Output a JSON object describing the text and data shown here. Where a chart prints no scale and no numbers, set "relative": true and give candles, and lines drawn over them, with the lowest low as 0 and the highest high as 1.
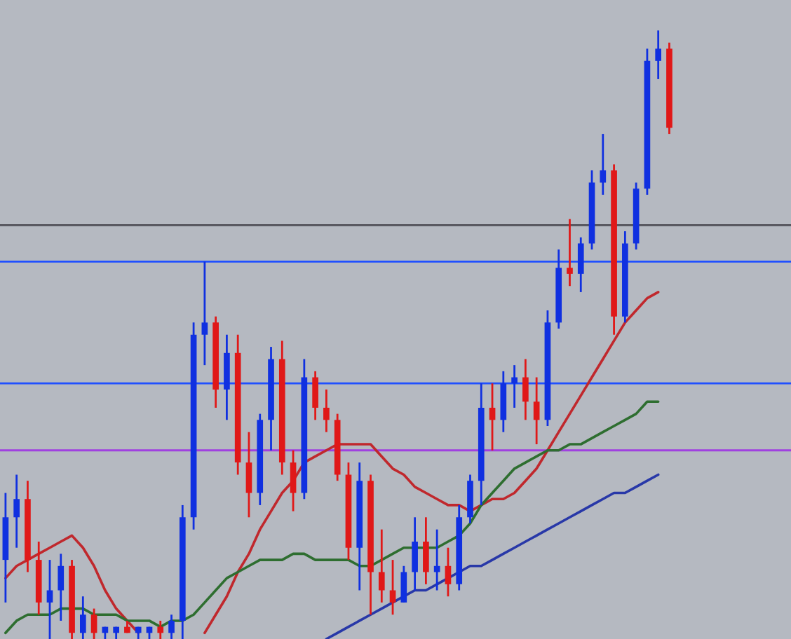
{
  "chart_data": {
    "type": "candlestick",
    "relative": true,
    "categories": [
      null,
      null,
      null,
      null,
      null,
      null,
      null,
      null,
      null,
      null,
      null,
      null,
      null,
      null,
      null,
      null,
      null,
      null,
      null,
      null,
      null,
      null,
      null,
      null,
      null,
      null,
      null,
      null,
      null,
      null,
      null,
      null,
      null,
      null,
      null,
      null,
      null,
      null,
      null,
      null,
      null,
      null,
      null,
      null,
      null,
      null,
      null,
      null,
      null,
      null,
      null,
      null,
      null,
      null,
      null,
      null,
      null,
      null,
      null,
      null,
      null
    ],
    "ohlc": [
      [
        0.13,
        0.24,
        0.06,
        0.2
      ],
      [
        0.2,
        0.27,
        0.15,
        0.23
      ],
      [
        0.23,
        0.26,
        0.11,
        0.13
      ],
      [
        0.13,
        0.16,
        0.04,
        0.06
      ],
      [
        0.06,
        0.13,
        0,
        0.08
      ],
      [
        0.08,
        0.14,
        0.03,
        0.12
      ],
      [
        0.12,
        0.13,
        0,
        0.01
      ],
      [
        0.01,
        0.07,
        0,
        0.04
      ],
      [
        0.04,
        0.05,
        0,
        0.01
      ],
      [
        0.01,
        0.02,
        0,
        0.02
      ],
      [
        0.01,
        0.02,
        0,
        0.02
      ],
      [
        0.02,
        0.03,
        0.01,
        0.01
      ],
      [
        0.01,
        0.02,
        0,
        0.02
      ],
      [
        0.01,
        0.02,
        0,
        0.02
      ],
      [
        0.02,
        0.03,
        0,
        0.01
      ],
      [
        0.01,
        0.04,
        0,
        0.03
      ],
      [
        0.03,
        0.22,
        0,
        0.2
      ],
      [
        0.2,
        0.52,
        0.18,
        0.5
      ],
      [
        0.5,
        0.62,
        0.45,
        0.52
      ],
      [
        0.52,
        0.53,
        0.38,
        0.41
      ],
      [
        0.41,
        0.5,
        0.36,
        0.47
      ],
      [
        0.47,
        0.5,
        0.27,
        0.29
      ],
      [
        0.29,
        0.34,
        0.2,
        0.24
      ],
      [
        0.24,
        0.37,
        0.22,
        0.36
      ],
      [
        0.36,
        0.48,
        0.31,
        0.46
      ],
      [
        0.46,
        0.49,
        0.27,
        0.29
      ],
      [
        0.29,
        0.31,
        0.21,
        0.24
      ],
      [
        0.24,
        0.46,
        0.23,
        0.43
      ],
      [
        0.43,
        0.44,
        0.36,
        0.38
      ],
      [
        0.38,
        0.41,
        0.34,
        0.36
      ],
      [
        0.36,
        0.37,
        0.26,
        0.27
      ],
      [
        0.27,
        0.29,
        0.13,
        0.15
      ],
      [
        0.15,
        0.29,
        0.08,
        0.26
      ],
      [
        0.26,
        0.27,
        0.04,
        0.11
      ],
      [
        0.11,
        0.18,
        0.06,
        0.08
      ],
      [
        0.08,
        0.13,
        0.04,
        0.06
      ],
      [
        0.06,
        0.12,
        0.06,
        0.11
      ],
      [
        0.11,
        0.2,
        0.08,
        0.16
      ],
      [
        0.16,
        0.2,
        0.09,
        0.11
      ],
      [
        0.11,
        0.18,
        0.08,
        0.12
      ],
      [
        0.12,
        0.15,
        0.07,
        0.09
      ],
      [
        0.09,
        0.22,
        0.08,
        0.2
      ],
      [
        0.2,
        0.27,
        0.19,
        0.26
      ],
      [
        0.26,
        0.42,
        0.22,
        0.38
      ],
      [
        0.38,
        0.42,
        0.31,
        0.36
      ],
      [
        0.36,
        0.44,
        0.34,
        0.42
      ],
      [
        0.42,
        0.45,
        0.38,
        0.43
      ],
      [
        0.43,
        0.46,
        0.36,
        0.39
      ],
      [
        0.39,
        0.43,
        0.32,
        0.36
      ],
      [
        0.36,
        0.54,
        0.35,
        0.52
      ],
      [
        0.52,
        0.64,
        0.51,
        0.61
      ],
      [
        0.61,
        0.69,
        0.58,
        0.6
      ],
      [
        0.6,
        0.66,
        0.57,
        0.65
      ],
      [
        0.65,
        0.77,
        0.64,
        0.75
      ],
      [
        0.75,
        0.83,
        0.73,
        0.77
      ],
      [
        0.77,
        0.78,
        0.5,
        0.53
      ],
      [
        0.53,
        0.67,
        0.52,
        0.65
      ],
      [
        0.65,
        0.75,
        0.64,
        0.74
      ],
      [
        0.74,
        0.97,
        0.73,
        0.95
      ],
      [
        0.95,
        1.0,
        0.92,
        0.97
      ],
      [
        0.97,
        0.98,
        0.83,
        0.84
      ]
    ],
    "colors": [
      "#1030e0",
      "#1030e0",
      "#e01818",
      "#e01818",
      "#1030e0",
      "#1030e0",
      "#e01818",
      "#1030e0",
      "#e01818",
      "#1030e0",
      "#1030e0",
      "#e01818",
      "#1030e0",
      "#1030e0",
      "#e01818",
      "#1030e0",
      "#1030e0",
      "#1030e0",
      "#1030e0",
      "#e01818",
      "#1030e0",
      "#e01818",
      "#e01818",
      "#1030e0",
      "#1030e0",
      "#e01818",
      "#e01818",
      "#1030e0",
      "#e01818",
      "#e01818",
      "#e01818",
      "#e01818",
      "#1030e0",
      "#e01818",
      "#e01818",
      "#e01818",
      "#1030e0",
      "#1030e0",
      "#e01818",
      "#1030e0",
      "#e01818",
      "#1030e0",
      "#1030e0",
      "#1030e0",
      "#e01818",
      "#1030e0",
      "#1030e0",
      "#e01818",
      "#e01818",
      "#1030e0",
      "#1030e0",
      "#e01818",
      "#1030e0",
      "#1030e0",
      "#1030e0",
      "#e01818",
      "#1030e0",
      "#1030e0",
      "#1030e0",
      "#1030e0",
      "#e01818"
    ],
    "series": [
      {
        "type": "line",
        "color": "#c0282d",
        "values": [
          0.1,
          0.12,
          0.13,
          0.14,
          0.15,
          0.16,
          0.17,
          0.15,
          0.12,
          0.08,
          0.05,
          0.03,
          0.01,
          null,
          null,
          null,
          null,
          null,
          0.01,
          0.04,
          0.07,
          0.11,
          0.14,
          0.18,
          0.21,
          0.24,
          0.26,
          0.29,
          0.3,
          0.31,
          0.32,
          0.32,
          0.32,
          0.32,
          0.3,
          0.28,
          0.27,
          0.25,
          0.24,
          0.23,
          0.22,
          0.22,
          0.21,
          0.22,
          0.23,
          0.23,
          0.24,
          0.26,
          0.28,
          0.31,
          0.34,
          0.37,
          0.4,
          0.43,
          0.46,
          0.49,
          0.52,
          0.54,
          0.56,
          0.57,
          null
        ]
      },
      {
        "type": "line",
        "color": "#2e6e30",
        "values": [
          0.01,
          0.03,
          0.04,
          0.04,
          0.04,
          0.05,
          0.05,
          0.05,
          0.04,
          0.04,
          0.04,
          0.03,
          0.03,
          0.03,
          0.02,
          0.03,
          0.03,
          0.04,
          0.06,
          0.08,
          0.1,
          0.11,
          0.12,
          0.13,
          0.13,
          0.13,
          0.14,
          0.14,
          0.13,
          0.13,
          0.13,
          0.13,
          0.12,
          0.12,
          0.13,
          0.14,
          0.15,
          0.15,
          0.15,
          0.15,
          0.16,
          0.17,
          0.19,
          0.22,
          0.24,
          0.26,
          0.28,
          0.29,
          0.3,
          0.31,
          0.31,
          0.32,
          0.32,
          0.33,
          0.34,
          0.35,
          0.36,
          0.37,
          0.39,
          0.39,
          null
        ]
      },
      {
        "type": "line",
        "color": "#2838a8",
        "values": [
          null,
          null,
          null,
          null,
          null,
          null,
          null,
          null,
          null,
          null,
          null,
          null,
          null,
          null,
          null,
          null,
          null,
          null,
          null,
          null,
          null,
          null,
          null,
          null,
          null,
          null,
          null,
          null,
          null,
          0.0,
          0.01,
          0.02,
          0.03,
          0.04,
          0.05,
          0.06,
          0.07,
          0.08,
          0.08,
          0.09,
          0.1,
          0.11,
          0.12,
          0.12,
          0.13,
          0.14,
          0.15,
          0.16,
          0.17,
          0.18,
          0.19,
          0.2,
          0.21,
          0.22,
          0.23,
          0.24,
          0.24,
          0.25,
          0.26,
          0.27,
          null
        ]
      }
    ],
    "ref_lines": [
      {
        "axis": "y",
        "value": 0.68,
        "color": "#505058"
      },
      {
        "axis": "y",
        "value": 0.62,
        "color": "#2050ff"
      },
      {
        "axis": "y",
        "value": 0.42,
        "color": "#2050ff"
      },
      {
        "axis": "y",
        "value": 0.31,
        "color": "#a040e0"
      }
    ]
  }
}
